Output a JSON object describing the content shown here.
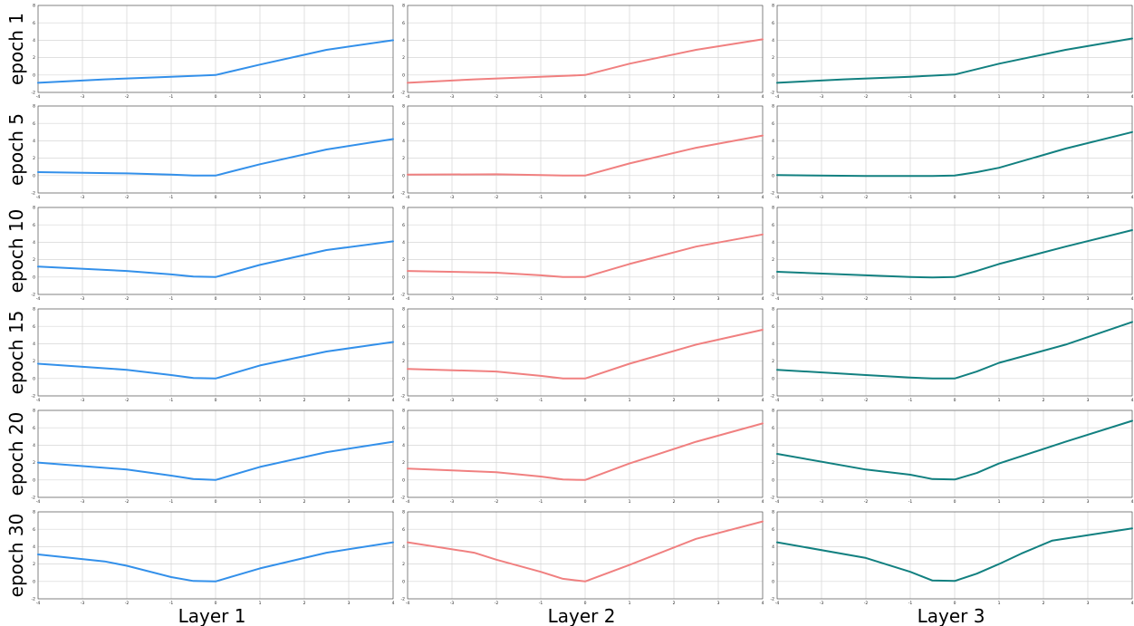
{
  "row_labels": [
    "epoch 1",
    "epoch 5",
    "epoch 10",
    "epoch 15",
    "epoch 20",
    "epoch 30"
  ],
  "col_labels": [
    "Layer 1",
    "Layer 2",
    "Layer 3"
  ],
  "colors": {
    "layer1": "#3390ea",
    "layer2": "#f08080",
    "layer3": "#128080",
    "grid": "#d6d6d6"
  },
  "chart_data": {
    "type": "line",
    "layout": "grid 6 rows x 3 columns",
    "xlim": [
      -4,
      4
    ],
    "ylim": [
      -2,
      8
    ],
    "x_ticks": [
      -4,
      -3,
      -2,
      -1,
      0,
      1,
      2,
      3,
      4
    ],
    "y_ticks": [
      -2,
      0,
      2,
      4,
      6,
      8
    ],
    "grid": true,
    "panels": [
      {
        "row": "epoch 1",
        "col": "Layer 1",
        "x": [
          -4,
          -2.5,
          -1,
          0,
          1,
          2.5,
          4
        ],
        "y": [
          -0.9,
          -0.5,
          -0.2,
          0,
          1.2,
          2.9,
          4.0
        ]
      },
      {
        "row": "epoch 1",
        "col": "Layer 2",
        "x": [
          -4,
          -2.5,
          -1,
          0,
          1,
          2.5,
          4
        ],
        "y": [
          -0.9,
          -0.5,
          -0.2,
          0,
          1.3,
          2.9,
          4.1
        ]
      },
      {
        "row": "epoch 1",
        "col": "Layer 3",
        "x": [
          -4,
          -2.5,
          -1,
          0,
          1,
          2.5,
          4
        ],
        "y": [
          -0.9,
          -0.5,
          -0.2,
          0.05,
          1.3,
          2.9,
          4.2
        ]
      },
      {
        "row": "epoch 5",
        "col": "Layer 1",
        "x": [
          -4,
          -2,
          -1,
          -0.5,
          0,
          1,
          2.5,
          4
        ],
        "y": [
          0.4,
          0.25,
          0.1,
          0,
          0,
          1.3,
          3.0,
          4.2
        ]
      },
      {
        "row": "epoch 5",
        "col": "Layer 2",
        "x": [
          -4,
          -2,
          -1,
          -0.5,
          0,
          1,
          2.5,
          4
        ],
        "y": [
          0.1,
          0.15,
          0.05,
          0,
          0,
          1.4,
          3.2,
          4.6
        ]
      },
      {
        "row": "epoch 5",
        "col": "Layer 3",
        "x": [
          -4,
          -2,
          -1,
          -0.5,
          0,
          0.5,
          1,
          2.5,
          4
        ],
        "y": [
          0.05,
          -0.05,
          -0.05,
          -0.05,
          0,
          0.4,
          0.9,
          3.1,
          5.0
        ]
      },
      {
        "row": "epoch 10",
        "col": "Layer 1",
        "x": [
          -4,
          -2,
          -1,
          -0.5,
          0,
          1,
          2.5,
          4
        ],
        "y": [
          1.2,
          0.7,
          0.3,
          0.05,
          0,
          1.4,
          3.1,
          4.1
        ]
      },
      {
        "row": "epoch 10",
        "col": "Layer 2",
        "x": [
          -4,
          -2,
          -1,
          -0.5,
          0,
          1,
          2.5,
          4
        ],
        "y": [
          0.7,
          0.5,
          0.2,
          0,
          0,
          1.5,
          3.5,
          4.9
        ]
      },
      {
        "row": "epoch 10",
        "col": "Layer 3",
        "x": [
          -4,
          -2,
          -1,
          -0.5,
          0,
          0.5,
          1,
          2.5,
          4
        ],
        "y": [
          0.6,
          0.2,
          0,
          -0.05,
          0,
          0.7,
          1.5,
          3.5,
          5.4
        ]
      },
      {
        "row": "epoch 15",
        "col": "Layer 1",
        "x": [
          -4,
          -2,
          -1,
          -0.5,
          0,
          1,
          2.5,
          4
        ],
        "y": [
          1.7,
          1.0,
          0.4,
          0.05,
          0,
          1.5,
          3.1,
          4.2
        ]
      },
      {
        "row": "epoch 15",
        "col": "Layer 2",
        "x": [
          -4,
          -2,
          -1,
          -0.5,
          0,
          1,
          2.5,
          4
        ],
        "y": [
          1.1,
          0.8,
          0.3,
          0,
          0,
          1.7,
          3.9,
          5.6
        ]
      },
      {
        "row": "epoch 15",
        "col": "Layer 3",
        "x": [
          -4,
          -2,
          -1,
          -0.5,
          0,
          0.5,
          1,
          2.5,
          4
        ],
        "y": [
          1.0,
          0.4,
          0.1,
          0,
          0,
          0.8,
          1.8,
          3.9,
          6.5
        ]
      },
      {
        "row": "epoch 20",
        "col": "Layer 1",
        "x": [
          -4,
          -2,
          -1,
          -0.5,
          0,
          1,
          2.5,
          4
        ],
        "y": [
          2.0,
          1.2,
          0.5,
          0.1,
          0,
          1.5,
          3.2,
          4.4
        ]
      },
      {
        "row": "epoch 20",
        "col": "Layer 2",
        "x": [
          -4,
          -2,
          -1,
          -0.5,
          0,
          1,
          2.5,
          4
        ],
        "y": [
          1.3,
          0.9,
          0.4,
          0.05,
          0,
          1.9,
          4.4,
          6.5
        ]
      },
      {
        "row": "epoch 20",
        "col": "Layer 3",
        "x": [
          -4,
          -2,
          -1,
          -0.5,
          0,
          0.5,
          1,
          2.5,
          4
        ],
        "y": [
          3.0,
          1.2,
          0.6,
          0.1,
          0.05,
          0.8,
          1.9,
          4.4,
          6.8
        ]
      },
      {
        "row": "epoch 30",
        "col": "Layer 1",
        "x": [
          -4,
          -2.5,
          -2,
          -1,
          -0.5,
          0,
          1,
          2.5,
          4
        ],
        "y": [
          3.1,
          2.3,
          1.8,
          0.5,
          0.05,
          0,
          1.5,
          3.3,
          4.5
        ]
      },
      {
        "row": "epoch 30",
        "col": "Layer 2",
        "x": [
          -4,
          -2.5,
          -2,
          -1,
          -0.5,
          0,
          1,
          2.5,
          4
        ],
        "y": [
          4.5,
          3.3,
          2.5,
          1.1,
          0.3,
          0,
          1.9,
          4.9,
          6.9
        ]
      },
      {
        "row": "epoch 30",
        "col": "Layer 3",
        "x": [
          -4,
          -2,
          -1,
          -0.5,
          0,
          0.5,
          1,
          1.5,
          2.2,
          4
        ],
        "y": [
          4.5,
          2.7,
          1.1,
          0.1,
          0.05,
          0.9,
          2.0,
          3.2,
          4.7,
          6.1
        ]
      }
    ]
  }
}
